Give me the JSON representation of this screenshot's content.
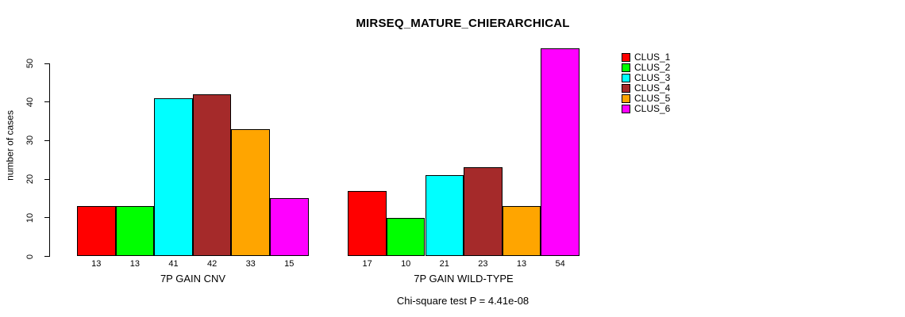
{
  "title": "MIRSEQ_MATURE_CHIERARCHICAL",
  "chart_data": {
    "type": "bar",
    "title": "MIRSEQ_MATURE_CHIERARCHICAL",
    "ylabel": "number of cases",
    "xlabel": "",
    "ylim": [
      0,
      54
    ],
    "yticks": [
      0,
      10,
      20,
      30,
      40,
      50
    ],
    "grid": false,
    "legend_position": "top-right",
    "categories": [
      "7P GAIN CNV",
      "7P GAIN WILD-TYPE"
    ],
    "series": [
      {
        "name": "CLUS_1",
        "color": "#FF0000",
        "values": [
          13,
          17
        ]
      },
      {
        "name": "CLUS_2",
        "color": "#00FF00",
        "values": [
          13,
          10
        ]
      },
      {
        "name": "CLUS_3",
        "color": "#00FFFF",
        "values": [
          41,
          21
        ]
      },
      {
        "name": "CLUS_4",
        "color": "#A52A2A",
        "values": [
          42,
          23
        ]
      },
      {
        "name": "CLUS_5",
        "color": "#FFA500",
        "values": [
          33,
          13
        ]
      },
      {
        "name": "CLUS_6",
        "color": "#FF00FF",
        "values": [
          15,
          54
        ]
      }
    ],
    "bar_labels": [
      [
        13,
        13,
        41,
        42,
        33,
        15
      ],
      [
        17,
        10,
        21,
        23,
        13,
        54
      ]
    ],
    "annotation": "Chi-square test P = 4.41e-08"
  },
  "colors": {
    "axis": "#000000",
    "background": "#FFFFFF"
  }
}
